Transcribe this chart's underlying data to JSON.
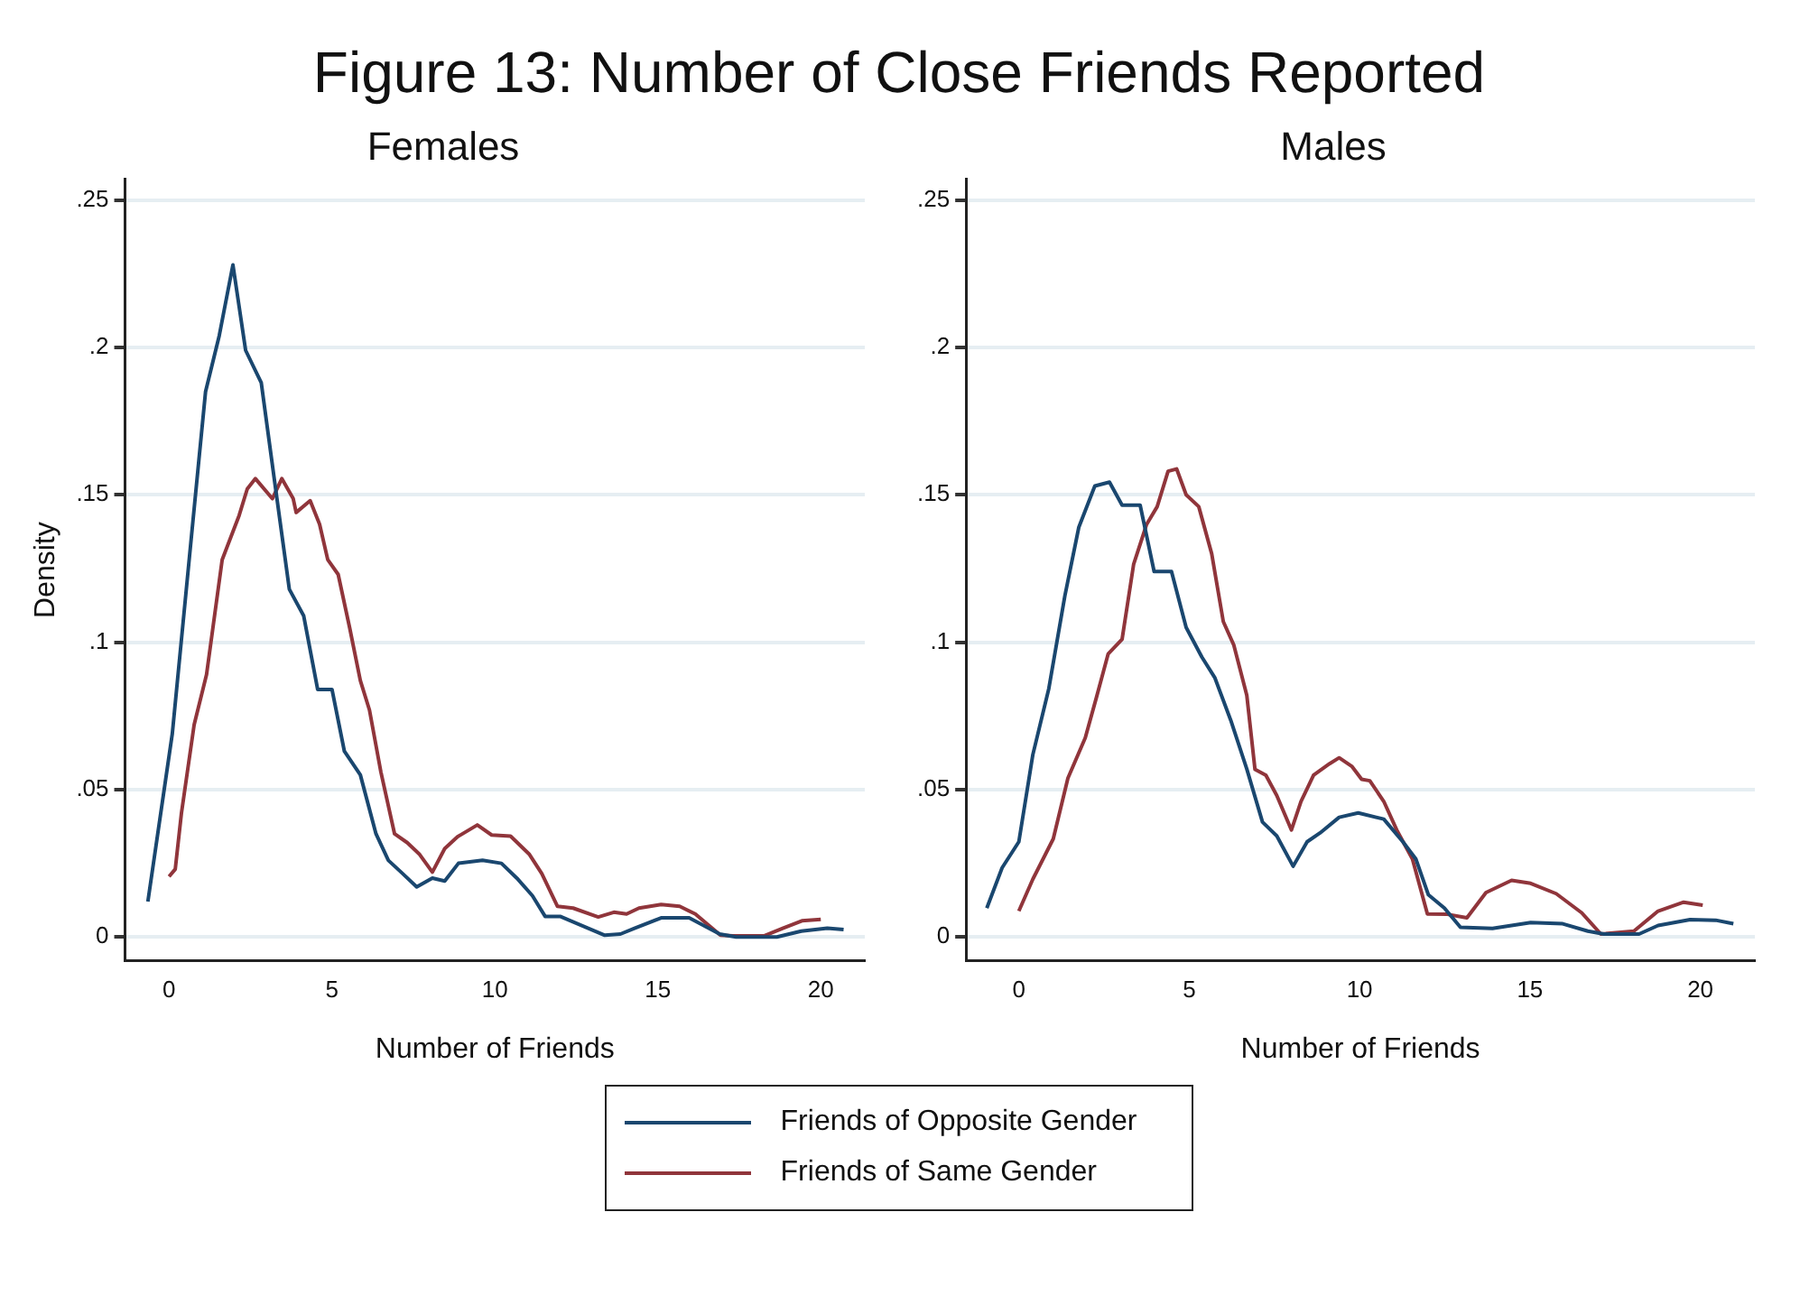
{
  "chart_data": [
    {
      "type": "line",
      "title": "Figure 13: Number of Close Friends Reported",
      "subtitle": "Females",
      "xlabel": "Number of Friends",
      "ylabel": "Density",
      "xlim": [
        -1.35,
        21.35
      ],
      "ylim": [
        -0.008,
        0.257
      ],
      "xticks": [
        0,
        5,
        10,
        15,
        20
      ],
      "yticks": [
        0,
        {
          "value": 0.05,
          "label": ".05"
        },
        {
          "value": 0.1,
          "label": ".1"
        },
        {
          "value": 0.15,
          "label": ".15"
        },
        {
          "value": 0.2,
          "label": ".2"
        },
        {
          "value": 0.25,
          "label": ".25"
        }
      ],
      "grid": "y",
      "legend": "bottom",
      "series": [
        {
          "name": "Friends of Opposite Gender",
          "color": "#1a476f",
          "x": [
            -0.65,
            0.1,
            0.67,
            1.12,
            1.54,
            1.96,
            2.35,
            2.83,
            3.27,
            3.69,
            4.13,
            4.56,
            5.0,
            5.38,
            5.87,
            6.35,
            6.73,
            7.12,
            7.6,
            8.08,
            8.46,
            8.88,
            9.62,
            10.2,
            10.67,
            11.15,
            11.54,
            12.0,
            13.37,
            13.85,
            14.3,
            15.1,
            15.96,
            16.9,
            17.4,
            18.65,
            19.4,
            20.2,
            20.7
          ],
          "values": [
            0.012,
            0.069,
            0.134,
            0.185,
            0.204,
            0.228,
            0.199,
            0.188,
            0.152,
            0.118,
            0.109,
            0.084,
            0.084,
            0.063,
            0.055,
            0.035,
            0.026,
            0.022,
            0.017,
            0.02,
            0.019,
            0.025,
            0.026,
            0.025,
            0.02,
            0.014,
            0.007,
            0.007,
            0.0006,
            0.001,
            0.003,
            0.0065,
            0.0065,
            0.001,
            0,
            0,
            0.002,
            0.003,
            0.0025
          ]
        },
        {
          "name": "Friends of Same Gender",
          "color": "#90353b",
          "x": [
            0.0,
            0.19,
            0.38,
            0.77,
            1.15,
            1.63,
            2.15,
            2.4,
            2.65,
            3.17,
            3.46,
            3.81,
            3.9,
            4.33,
            4.62,
            4.87,
            5.19,
            5.54,
            5.87,
            6.15,
            6.5,
            6.92,
            7.31,
            7.69,
            8.08,
            8.46,
            8.85,
            9.46,
            9.9,
            10.48,
            11.06,
            11.44,
            11.92,
            12.4,
            13.17,
            13.65,
            14.04,
            14.42,
            15.1,
            15.67,
            16.15,
            16.92,
            17.3,
            18.27,
            18.85,
            19.42,
            20.0
          ],
          "values": [
            0.0205,
            0.023,
            0.042,
            0.072,
            0.089,
            0.128,
            0.143,
            0.152,
            0.1555,
            0.1487,
            0.1555,
            0.1487,
            0.144,
            0.148,
            0.14,
            0.128,
            0.123,
            0.105,
            0.087,
            0.077,
            0.056,
            0.035,
            0.032,
            0.028,
            0.022,
            0.03,
            0.034,
            0.038,
            0.0346,
            0.0342,
            0.028,
            0.0215,
            0.0104,
            0.0098,
            0.0068,
            0.0084,
            0.0078,
            0.0098,
            0.011,
            0.0104,
            0.0078,
            0.0006,
            0.0004,
            0.0004,
            0.003,
            0.0055,
            0.006
          ]
        }
      ]
    },
    {
      "type": "line",
      "subtitle": "Males",
      "xlabel": "Number of Friends",
      "xlim": [
        -1.55,
        21.6
      ],
      "ylim": [
        -0.008,
        0.257
      ],
      "xticks": [
        0,
        5,
        10,
        15,
        20
      ],
      "yticks": [
        0,
        {
          "value": 0.05,
          "label": ".05"
        },
        {
          "value": 0.1,
          "label": ".1"
        },
        {
          "value": 0.15,
          "label": ".15"
        },
        {
          "value": 0.2,
          "label": ".2"
        },
        {
          "value": 0.25,
          "label": ".25"
        }
      ],
      "grid": "y",
      "series": [
        {
          "name": "Friends of Opposite Gender",
          "color": "#1a476f",
          "x": [
            -0.94,
            -0.49,
            0.0,
            0.41,
            0.88,
            1.35,
            1.76,
            2.23,
            2.66,
            3.03,
            3.56,
            3.97,
            4.48,
            4.91,
            5.37,
            5.75,
            6.22,
            6.69,
            7.15,
            7.57,
            8.05,
            8.46,
            8.84,
            9.4,
            9.96,
            10.71,
            11.27,
            11.65,
            12.02,
            12.49,
            12.96,
            13.9,
            15.02,
            15.96,
            16.7,
            17.17,
            18.2,
            18.76,
            19.7,
            20.45,
            20.97
          ],
          "values": [
            0.0098,
            0.0235,
            0.0323,
            0.0618,
            0.0843,
            0.1157,
            0.139,
            0.153,
            0.1543,
            0.1465,
            0.1465,
            0.124,
            0.124,
            0.105,
            0.095,
            0.088,
            0.0735,
            0.057,
            0.039,
            0.0343,
            0.024,
            0.0323,
            0.0353,
            0.0406,
            0.0421,
            0.04,
            0.0323,
            0.0265,
            0.0143,
            0.0098,
            0.0033,
            0.0029,
            0.0049,
            0.0045,
            0.002,
            0.001,
            0.001,
            0.0039,
            0.0059,
            0.0057,
            0.0045
          ]
        },
        {
          "name": "Friends of Same Gender",
          "color": "#90353b",
          "x": [
            0.0,
            0.41,
            1.01,
            1.44,
            1.95,
            2.28,
            2.62,
            3.03,
            3.37,
            3.75,
            4.06,
            4.38,
            4.63,
            4.91,
            5.28,
            5.66,
            6.0,
            6.31,
            6.69,
            6.93,
            7.25,
            7.57,
            8.0,
            8.28,
            8.65,
            9.12,
            9.4,
            9.78,
            10.06,
            10.3,
            10.71,
            11.09,
            11.55,
            11.99,
            12.58,
            13.15,
            13.71,
            14.46,
            15.02,
            15.77,
            16.52,
            17.08,
            18.05,
            18.76,
            19.51,
            20.07
          ],
          "values": [
            0.0088,
            0.0196,
            0.0333,
            0.0539,
            0.0676,
            0.0814,
            0.096,
            0.101,
            0.1265,
            0.14,
            0.146,
            0.158,
            0.1588,
            0.15,
            0.146,
            0.13,
            0.107,
            0.099,
            0.082,
            0.0569,
            0.0549,
            0.048,
            0.0363,
            0.046,
            0.0549,
            0.0588,
            0.0608,
            0.0578,
            0.0535,
            0.053,
            0.046,
            0.0363,
            0.0265,
            0.0078,
            0.0077,
            0.0065,
            0.0151,
            0.0192,
            0.0182,
            0.0147,
            0.0082,
            0.001,
            0.002,
            0.0088,
            0.0118,
            0.0108
          ]
        }
      ]
    }
  ]
}
